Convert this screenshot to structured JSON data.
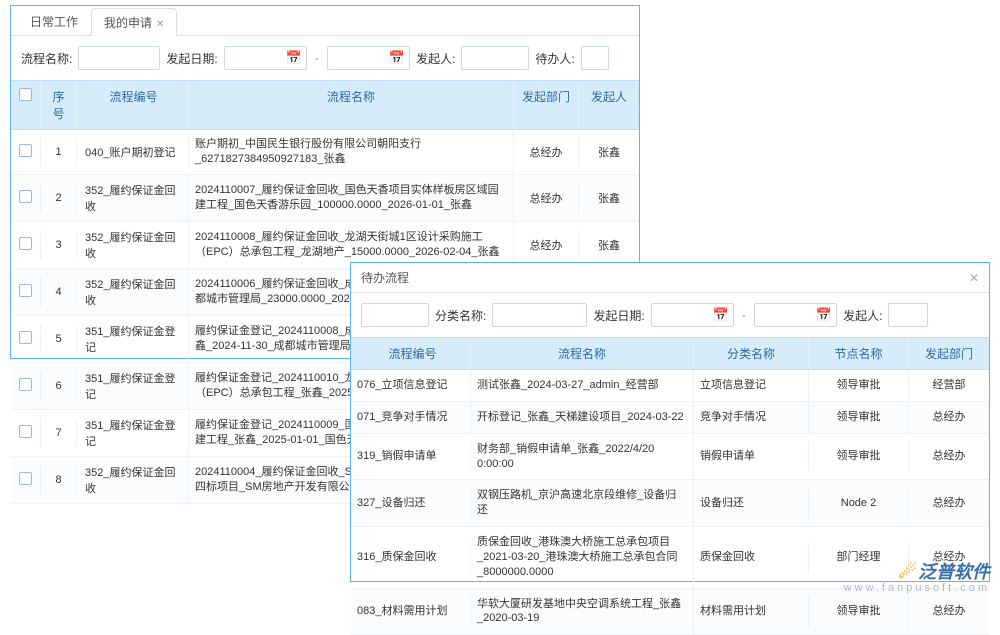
{
  "panel1": {
    "tabs": [
      {
        "label": "日常工作",
        "active": false
      },
      {
        "label": "我的申请",
        "active": true,
        "closable": true
      }
    ],
    "filters": {
      "name_label": "流程名称:",
      "date_label": "发起日期:",
      "initiator_label": "发起人:",
      "handler_label": "待办人:"
    },
    "headers": {
      "idx": "序号",
      "code": "流程编号",
      "name": "流程名称",
      "dept": "发起部门",
      "initiator": "发起人"
    },
    "rows": [
      {
        "idx": "1",
        "code": "040_账户期初登记",
        "name": "账户期初_中国民生银行股份有限公司朝阳支行_6271827384950927183_张鑫",
        "dept": "总经办",
        "initiator": "张鑫"
      },
      {
        "idx": "2",
        "code": "352_履约保证金回收",
        "name": "2024110007_履约保证金回收_国色天香项目实体样板房区域园建工程_国色天香游乐园_100000.0000_2026-01-01_张鑫",
        "dept": "总经办",
        "initiator": "张鑫"
      },
      {
        "idx": "3",
        "code": "352_履约保证金回收",
        "name": "2024110008_履约保证金回收_龙湖天街城1区设计采购施工（EPC）总承包工程_龙湖地产_15000.0000_2026-02-04_张鑫",
        "dept": "总经办",
        "initiator": "张鑫"
      },
      {
        "idx": "4",
        "code": "352_履约保证金回收",
        "name": "2024110006_履约保证金回收_成都水岸华庭名苑项目一标段_成都城市管理局_23000.0000_2025-06-09_张鑫",
        "dept": "总经办",
        "initiator": "张鑫"
      },
      {
        "idx": "5",
        "code": "351_履约保证金登记",
        "name": "履约保证金登记_2024110008_成都水岸华庭名苑项目一标段_张鑫_2024-11-30_成都城市管理局",
        "dept": "总经办",
        "initiator": "张鑫"
      },
      {
        "idx": "6",
        "code": "351_履约保证金登记",
        "name": "履约保证金登记_2024110010_龙湖天街城1区设计采购施工（EPC）总承包工程_张鑫_2025-01",
        "dept": "",
        "initiator": ""
      },
      {
        "idx": "7",
        "code": "351_履约保证金登记",
        "name": "履约保证金登记_2024110009_国色天香项目实体样板房区域园建工程_张鑫_2025-01-01_国色天香游",
        "dept": "",
        "initiator": ""
      },
      {
        "idx": "8",
        "code": "352_履约保证金回收",
        "name": "2024110004_履约保证金回收_SM广场项目室外景观及配套工程四标项目_SM房地产开发有限公司_2990",
        "dept": "",
        "initiator": ""
      }
    ]
  },
  "panel2": {
    "title": "待办流程",
    "filters": {
      "cat_label": "分类名称:",
      "date_label": "发起日期:",
      "initiator_label": "发起人:"
    },
    "headers": {
      "code": "流程编号",
      "name": "流程名称",
      "cat": "分类名称",
      "node": "节点名称",
      "dept": "发起部门"
    },
    "rows": [
      {
        "code": "076_立项信息登记",
        "name": "测试张鑫_2024-03-27_admin_经营部",
        "cat": "立项信息登记",
        "node": "领导审批",
        "dept": "经营部"
      },
      {
        "code": "071_竞争对手情况",
        "name": "开标登记_张鑫_天梯建设项目_2024-03-22",
        "cat": "竞争对手情况",
        "node": "领导审批",
        "dept": "总经办"
      },
      {
        "code": "319_销假申请单",
        "name": "财务部_销假申请单_张鑫_2022/4/20 0:00:00",
        "cat": "销假申请单",
        "node": "领导审批",
        "dept": "总经办"
      },
      {
        "code": "327_设备归还",
        "name": "双钢压路机_京沪高速北京段维修_设备归还",
        "cat": "设备归还",
        "node": "Node 2",
        "dept": "总经办"
      },
      {
        "code": "316_质保金回收",
        "name": "质保金回收_港珠澳大桥施工总承包项目_2021-03-20_港珠澳大桥施工总承包合同_8000000.0000",
        "cat": "质保金回收",
        "node": "部门经理",
        "dept": "总经办"
      },
      {
        "code": "083_材料需用计划",
        "name": "华软大厦研发基地中央空调系统工程_张鑫_2020-03-19",
        "cat": "材料需用计划",
        "node": "领导审批",
        "dept": "总经办"
      }
    ]
  },
  "brand": {
    "cn": "泛普软件",
    "en": "www.fanpusoft.com"
  }
}
